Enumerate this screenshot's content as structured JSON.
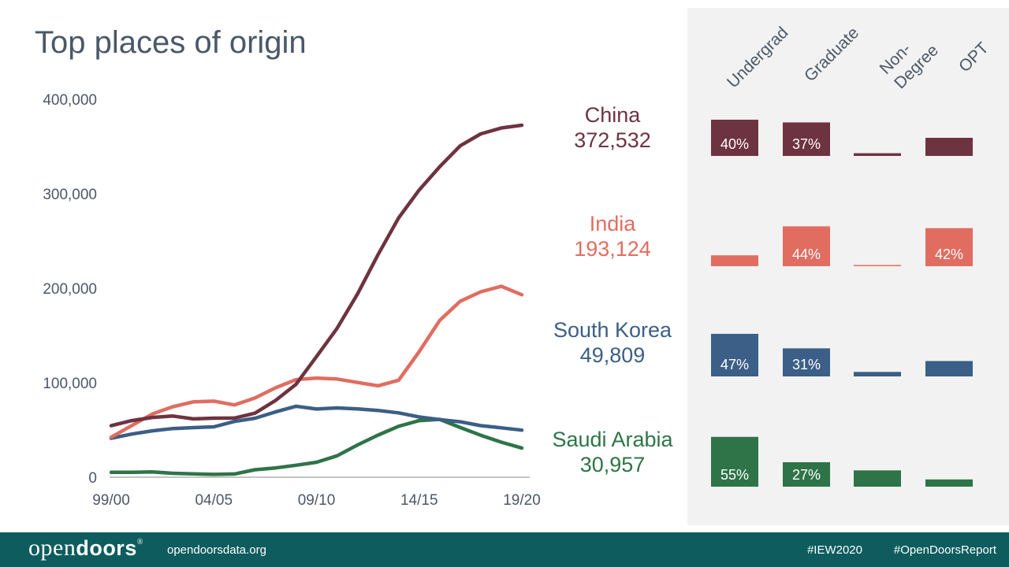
{
  "title": "Top places of origin",
  "colors": {
    "China": "#6e3340",
    "India": "#e06d60",
    "South Korea": "#3b5f86",
    "Saudi Arabia": "#2e7448",
    "axis_text": "#4a5868",
    "panel_bg": "#f2f2f2",
    "footer_bg": "#0e5c5e"
  },
  "countries": [
    {
      "name": "China",
      "total": "372,532"
    },
    {
      "name": "India",
      "total": "193,124"
    },
    {
      "name": "South Korea",
      "total": "49,809"
    },
    {
      "name": "Saudi Arabia",
      "total": "30,957"
    }
  ],
  "breakdown_headers": [
    "Undergrad",
    "Graduate",
    "Non-\nDegree",
    "OPT"
  ],
  "chart_data": [
    {
      "type": "line",
      "title": "Top places of origin",
      "xlabel": "",
      "ylabel": "",
      "x": [
        "99/00",
        "00/01",
        "01/02",
        "02/03",
        "03/04",
        "04/05",
        "05/06",
        "06/07",
        "07/08",
        "08/09",
        "09/10",
        "10/11",
        "11/12",
        "12/13",
        "13/14",
        "14/15",
        "15/16",
        "16/17",
        "17/18",
        "18/19",
        "19/20"
      ],
      "x_tick_labels": [
        "99/00",
        "04/05",
        "09/10",
        "14/15",
        "19/20"
      ],
      "y_tick_labels": [
        "0",
        "100,000",
        "200,000",
        "300,000",
        "400,000"
      ],
      "ylim": [
        0,
        400000
      ],
      "series": [
        {
          "name": "China",
          "values": [
            54466,
            59939,
            63211,
            64757,
            61765,
            62523,
            62582,
            67723,
            81127,
            98235,
            127628,
            157558,
            194029,
            235597,
            274439,
            304040,
            328547,
            350755,
            363341,
            369548,
            372532
          ]
        },
        {
          "name": "India",
          "values": [
            42337,
            54664,
            66836,
            74603,
            79736,
            80466,
            76503,
            83833,
            94563,
            103260,
            104897,
            103895,
            100270,
            96754,
            102673,
            132888,
            165918,
            186267,
            196271,
            202014,
            193124
          ]
        },
        {
          "name": "South Korea",
          "values": [
            41191,
            45685,
            49046,
            51519,
            52484,
            53358,
            59022,
            62392,
            69124,
            75065,
            72153,
            73351,
            72295,
            70627,
            68047,
            63710,
            61007,
            58663,
            54555,
            52250,
            49809
          ]
        },
        {
          "name": "Saudi Arabia",
          "values": [
            5156,
            5273,
            5579,
            4175,
            3521,
            3035,
            3448,
            7886,
            9873,
            12661,
            15810,
            22704,
            34139,
            44566,
            53919,
            59945,
            61287,
            52611,
            44432,
            37080,
            30957
          ]
        }
      ]
    },
    {
      "type": "bar",
      "title": "",
      "categories": [
        "Undergrad",
        "Graduate",
        "Non-Degree",
        "OPT"
      ],
      "series": [
        {
          "name": "China",
          "values": [
            40,
            37,
            3,
            20
          ],
          "labels": [
            "40%",
            "37%",
            "",
            ""
          ]
        },
        {
          "name": "India",
          "values": [
            12,
            44,
            1,
            42
          ],
          "labels": [
            "",
            "44%",
            "",
            "42%"
          ]
        },
        {
          "name": "South Korea",
          "values": [
            47,
            31,
            5,
            17
          ],
          "labels": [
            "47%",
            "31%",
            "",
            ""
          ]
        },
        {
          "name": "Saudi Arabia",
          "values": [
            55,
            27,
            18,
            8
          ],
          "labels": [
            "55%",
            "27%",
            "",
            ""
          ]
        }
      ]
    }
  ],
  "footer": {
    "logo_light": "open",
    "logo_bold": "doors",
    "logo_mark": "®",
    "url": "opendoorsdata.org",
    "hashtag1": "#IEW2020",
    "hashtag2": "#OpenDoorsReport"
  }
}
